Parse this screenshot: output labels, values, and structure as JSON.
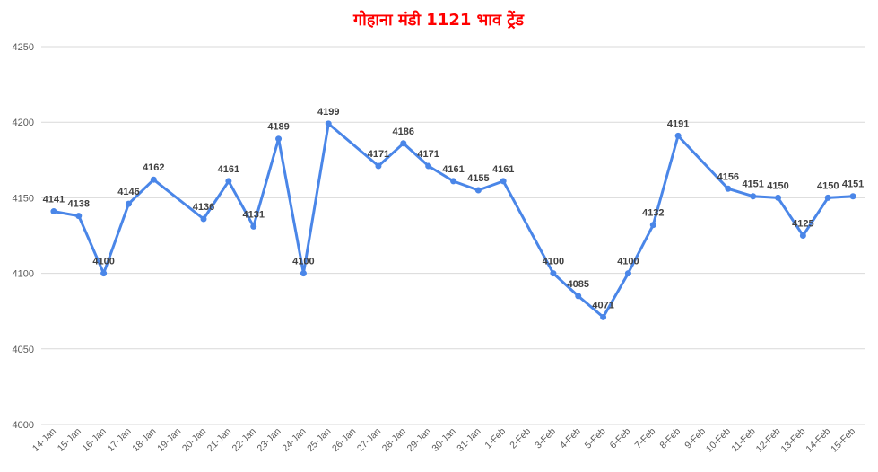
{
  "chart_data": {
    "type": "line",
    "title": "गोहाना मंडी 1121 भाव ट्रेंड",
    "xlabel": "",
    "ylabel": "",
    "ylim": [
      4000,
      4250
    ],
    "yticks": [
      "4000",
      "4050",
      "4100",
      "4150",
      "4200",
      "4250"
    ],
    "grid": true,
    "title_color": "#ff0000",
    "line_color": "#4a86e8",
    "categories": [
      "14-Jan",
      "15-Jan",
      "16-Jan",
      "17-Jan",
      "18-Jan",
      "19-Jan",
      "20-Jan",
      "21-Jan",
      "22-Jan",
      "23-Jan",
      "24-Jan",
      "25-Jan",
      "26-Jan",
      "27-Jan",
      "28-Jan",
      "29-Jan",
      "30-Jan",
      "31-Jan",
      "1-Feb",
      "2-Feb",
      "3-Feb",
      "4-Feb",
      "5-Feb",
      "6-Feb",
      "7-Feb",
      "8-Feb",
      "9-Feb",
      "10-Feb",
      "11-Feb",
      "12-Feb",
      "13-Feb",
      "14-Feb",
      "15-Feb"
    ],
    "points": [
      {
        "x": "14-Jan",
        "y": 4141,
        "label": "4141"
      },
      {
        "x": "15-Jan",
        "y": 4138,
        "label": "4138"
      },
      {
        "x": "16-Jan",
        "y": 4100,
        "label": "4100"
      },
      {
        "x": "17-Jan",
        "y": 4146,
        "label": "4146"
      },
      {
        "x": "18-Jan",
        "y": 4162,
        "label": "4162"
      },
      {
        "x": "20-Jan",
        "y": 4136,
        "label": "4136"
      },
      {
        "x": "21-Jan",
        "y": 4161,
        "label": "4161"
      },
      {
        "x": "22-Jan",
        "y": 4131,
        "label": "4131"
      },
      {
        "x": "23-Jan",
        "y": 4189,
        "label": "4189"
      },
      {
        "x": "24-Jan",
        "y": 4100,
        "label": "4100"
      },
      {
        "x": "25-Jan",
        "y": 4199,
        "label": "4199"
      },
      {
        "x": "27-Jan",
        "y": 4171,
        "label": "4171"
      },
      {
        "x": "28-Jan",
        "y": 4186,
        "label": "4186"
      },
      {
        "x": "29-Jan",
        "y": 4171,
        "label": "4171"
      },
      {
        "x": "30-Jan",
        "y": 4161,
        "label": "4161"
      },
      {
        "x": "31-Jan",
        "y": 4155,
        "label": "4155"
      },
      {
        "x": "1-Feb",
        "y": 4161,
        "label": "4161"
      },
      {
        "x": "3-Feb",
        "y": 4100,
        "label": "4100"
      },
      {
        "x": "4-Feb",
        "y": 4085,
        "label": "4085"
      },
      {
        "x": "5-Feb",
        "y": 4071,
        "label": "4071"
      },
      {
        "x": "6-Feb",
        "y": 4100,
        "label": "4100"
      },
      {
        "x": "7-Feb",
        "y": 4132,
        "label": "4132"
      },
      {
        "x": "8-Feb",
        "y": 4191,
        "label": "4191"
      },
      {
        "x": "10-Feb",
        "y": 4156,
        "label": "4156"
      },
      {
        "x": "11-Feb",
        "y": 4151,
        "label": "4151"
      },
      {
        "x": "12-Feb",
        "y": 4150,
        "label": "4150"
      },
      {
        "x": "13-Feb",
        "y": 4125,
        "label": "4125"
      },
      {
        "x": "14-Feb",
        "y": 4150,
        "label": "4150"
      },
      {
        "x": "15-Feb",
        "y": 4151,
        "label": "4151"
      }
    ]
  }
}
